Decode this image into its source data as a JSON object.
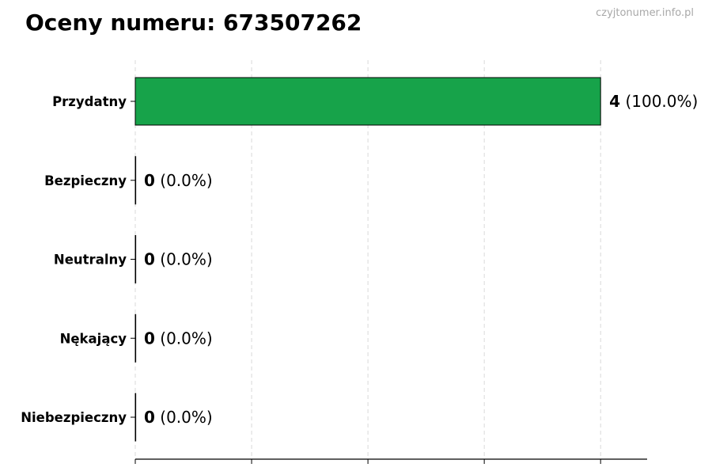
{
  "watermark": "czyjtonumer.info.pl",
  "chart_data": {
    "type": "bar",
    "orientation": "horizontal",
    "title": "Oceny numeru: 673507262",
    "categories": [
      "Przydatny",
      "Bezpieczny",
      "Neutralny",
      "Nękający",
      "Niebezpieczny"
    ],
    "values": [
      4,
      0,
      0,
      0,
      0
    ],
    "percent_labels": [
      "(100.0%)",
      "(0.0%)",
      "(0.0%)",
      "(0.0%)",
      "(0.0%)"
    ],
    "xlim": [
      0,
      4.4
    ],
    "xticks": [
      0,
      1,
      2,
      3,
      4
    ],
    "xtick_labels_shown": false,
    "grid": "vertical dashed",
    "bar_color": "#17a34a",
    "bar_edge_color": "#000000",
    "legend": "none"
  }
}
